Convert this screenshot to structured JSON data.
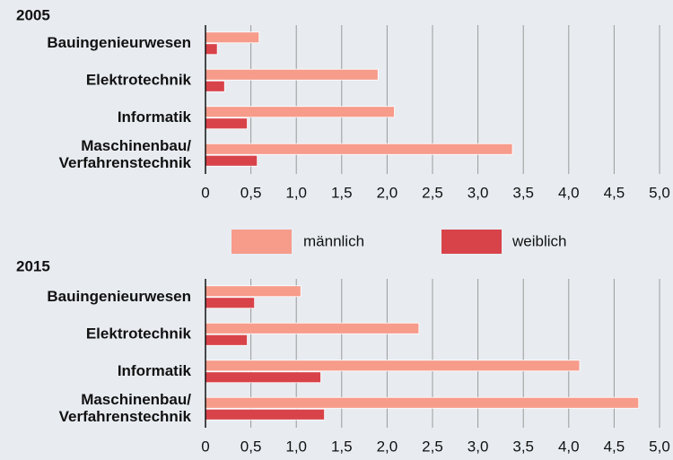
{
  "chart_data": [
    {
      "type": "bar",
      "title": "2005",
      "categories": [
        "Bauingenieurwesen",
        "Elektrotechnik",
        "Informatik",
        "Maschinenbau/\nVerfahrenstechnik"
      ],
      "series": [
        {
          "name": "männlich",
          "color": "#f79b8b",
          "values": [
            0.59,
            1.9,
            2.08,
            3.38
          ]
        },
        {
          "name": "weiblich",
          "color": "#d8434a",
          "values": [
            0.13,
            0.21,
            0.46,
            0.57
          ]
        }
      ],
      "xlim": [
        0,
        5
      ],
      "xticks": [
        0,
        {
          "value": 0.5,
          "label": "0,5"
        },
        {
          "value": 1,
          "label": "1,0"
        },
        {
          "value": 1.5,
          "label": "1,5"
        },
        {
          "value": 2,
          "label": "2,0"
        },
        {
          "value": 2.5,
          "label": "2,5"
        },
        {
          "value": 3,
          "label": "3,0"
        },
        {
          "value": 3.5,
          "label": "3,5"
        },
        {
          "value": 4,
          "label": "4,0"
        },
        {
          "value": 4.5,
          "label": "4,5"
        },
        {
          "value": 5,
          "label": "5,0"
        }
      ],
      "grid": true
    },
    {
      "type": "bar",
      "title": "2015",
      "categories": [
        "Bauingenieurwesen",
        "Elektrotechnik",
        "Informatik",
        "Maschinenbau/\nVerfahrenstechnik"
      ],
      "series": [
        {
          "color": "#f79b8b",
          "values": [
            1.05,
            2.35,
            4.12,
            4.77
          ]
        },
        {
          "color": "#d8434a",
          "values": [
            0.54,
            0.46,
            1.27,
            1.31
          ]
        }
      ],
      "xlim": [
        0,
        5
      ],
      "xticks": [
        0,
        {
          "value": 0.5,
          "label": "0,5"
        },
        {
          "value": 1,
          "label": "1,0"
        },
        {
          "value": 1.5,
          "label": "1,5"
        },
        {
          "value": 2,
          "label": "2,0"
        },
        {
          "value": 2.5,
          "label": "2,5"
        },
        {
          "value": 3,
          "label": "3,0"
        },
        {
          "value": 3.5,
          "label": "3,5"
        },
        {
          "value": 4,
          "label": "4,0"
        },
        {
          "value": 4.5,
          "label": "4,5"
        },
        {
          "value": 5,
          "label": "5,0"
        }
      ],
      "grid": true
    }
  ]
}
